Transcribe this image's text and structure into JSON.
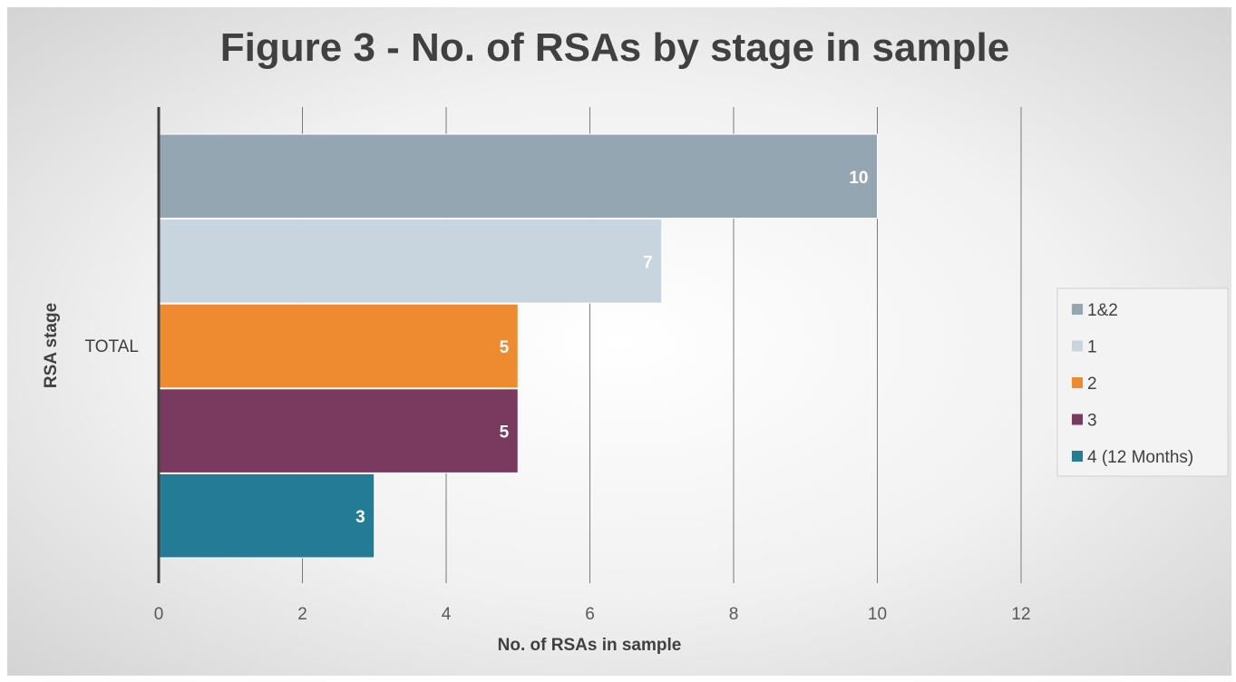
{
  "chart_data": {
    "type": "bar",
    "orientation": "horizontal",
    "title": "Figure 3 - No. of RSAs by stage in sample",
    "xlabel": "No. of RSAs in sample",
    "ylabel": "RSA stage",
    "categories": [
      "TOTAL"
    ],
    "xlim": [
      0,
      12
    ],
    "x_ticks": [
      "0",
      "2",
      "4",
      "6",
      "8",
      "10",
      "12"
    ],
    "grid": true,
    "legend_position": "right",
    "series": [
      {
        "name": "1&2",
        "values": [
          10
        ],
        "color": "#95a6b3",
        "label": "10"
      },
      {
        "name": "1",
        "values": [
          7
        ],
        "color": "#c8d4de",
        "label": "7"
      },
      {
        "name": "2",
        "values": [
          5
        ],
        "color": "#ee8a2f",
        "label": "5"
      },
      {
        "name": "3",
        "values": [
          5
        ],
        "color": "#7a395f",
        "label": "5"
      },
      {
        "name": "4 (12 Months)",
        "values": [
          3
        ],
        "color": "#247b96",
        "label": "3"
      }
    ]
  }
}
